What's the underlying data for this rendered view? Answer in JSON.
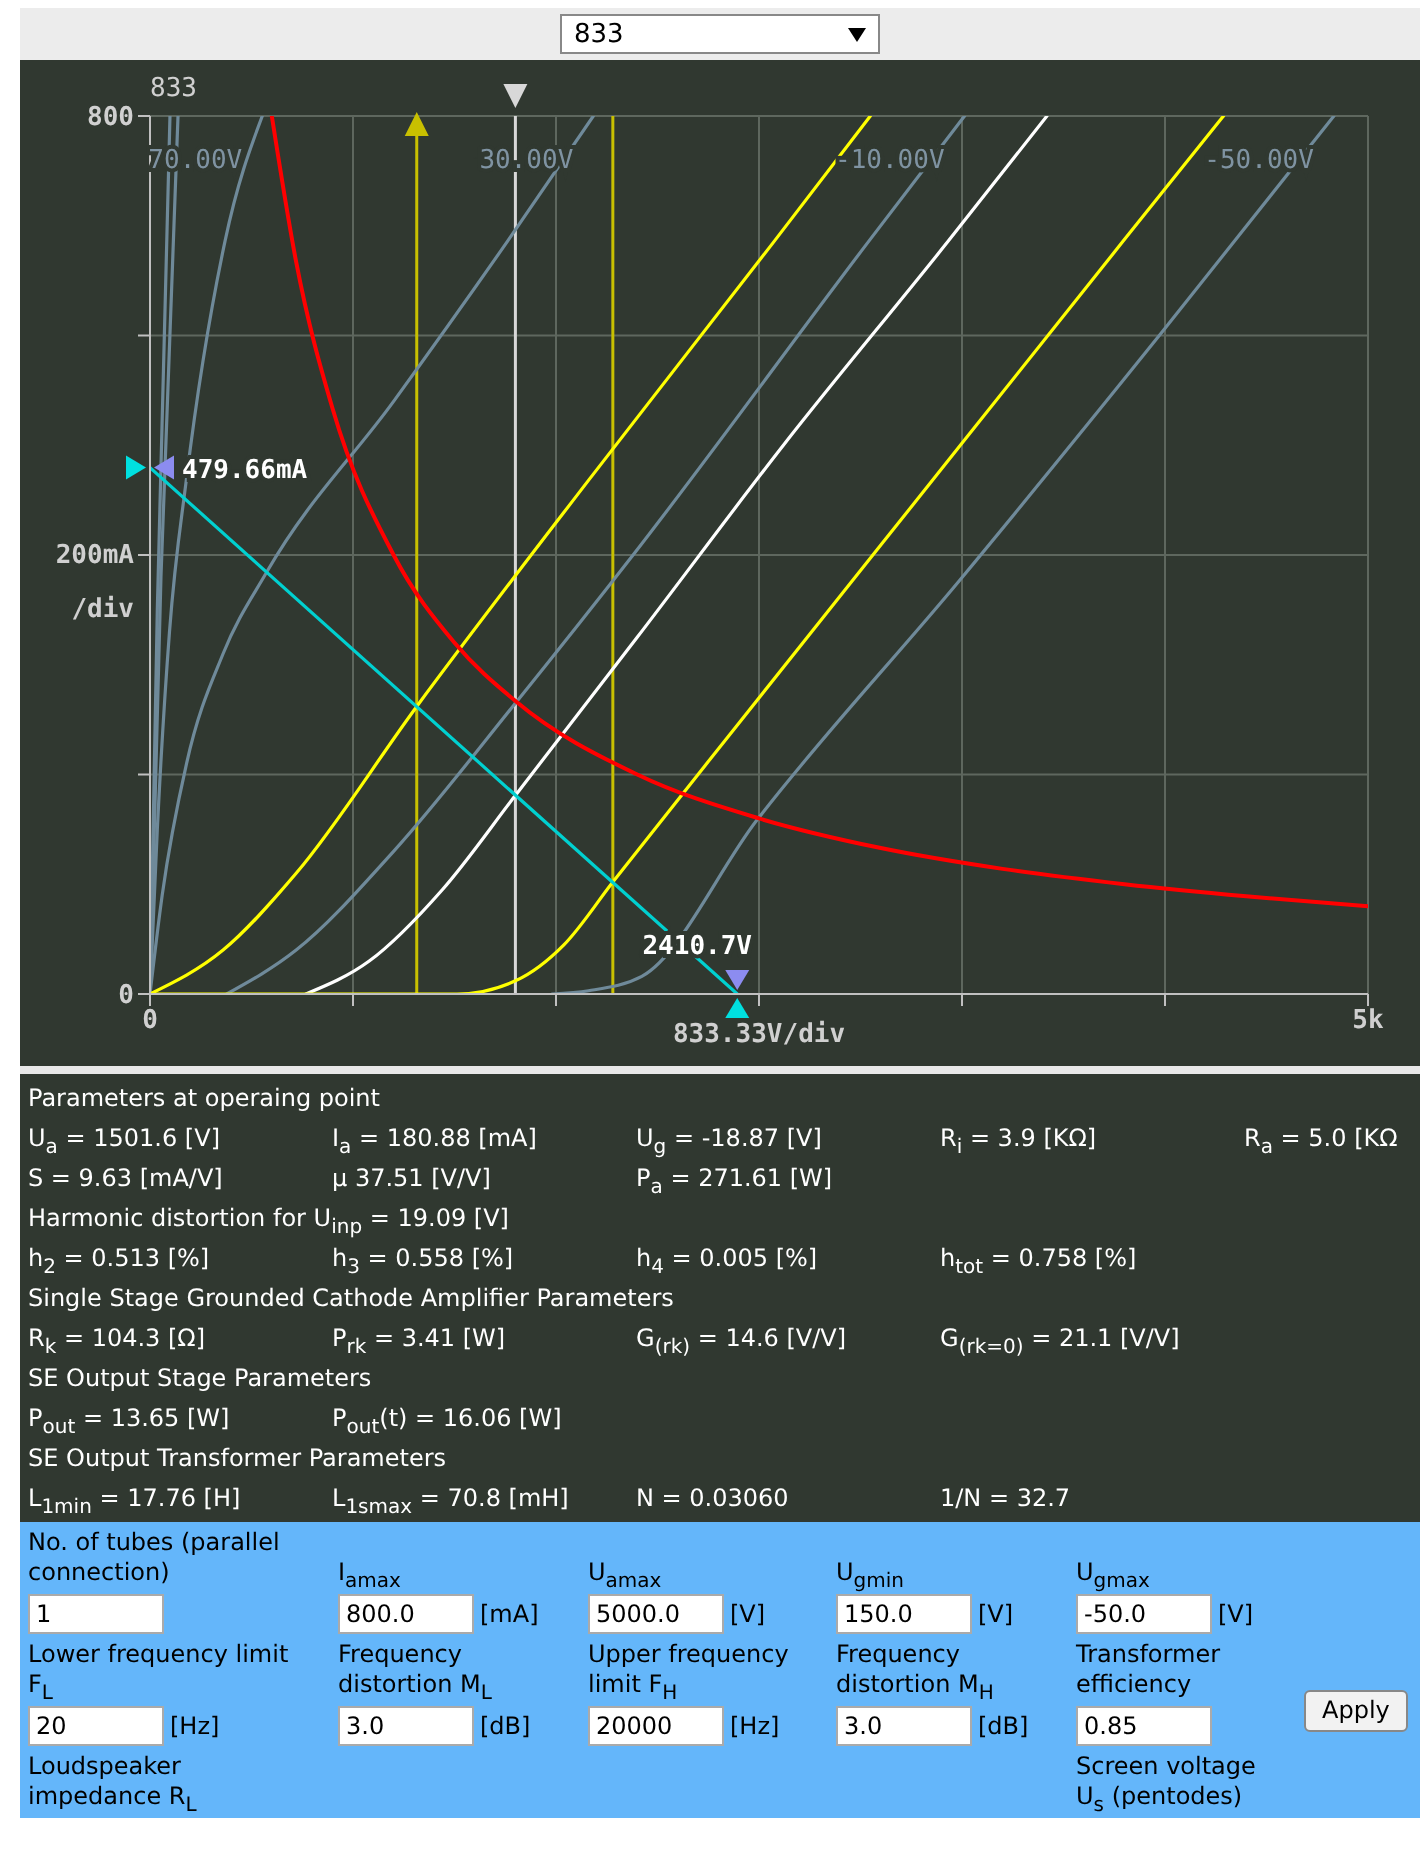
{
  "chart_data": {
    "type": "line",
    "title": "833",
    "xlabel": "833.33V/div",
    "ylabel": "200mA /div",
    "xlim": [
      0,
      5000
    ],
    "ylim": [
      0,
      800
    ],
    "xticks": [
      0,
      {
        "value": 833.33,
        "label": null
      },
      {
        "value": 1666.67,
        "label": null
      },
      {
        "value": 2500,
        "label": null
      },
      {
        "value": 3333.33,
        "label": null
      },
      {
        "value": 4166.67,
        "label": null
      },
      {
        "value": 5000,
        "label": "5k"
      }
    ],
    "yticks": [
      0,
      {
        "value": 200,
        "label": null
      },
      {
        "value": 400,
        "label": null
      },
      {
        "value": 600,
        "label": null
      },
      800
    ],
    "grid": true,
    "legend": false,
    "marker": "none",
    "line_style": "solid",
    "series": [
      {
        "color": "#6f8a9a",
        "x": [
          0,
          30,
          82
        ],
        "values": [
          0,
          350,
          800
        ]
      },
      {
        "color": "#6f8a9a",
        "x": [
          0,
          45,
          115
        ],
        "values": [
          0,
          380,
          800
        ]
      },
      {
        "name": "70.00V",
        "color": "#6f8a9a",
        "x": [
          0,
          30,
          80,
          150,
          308,
          461
        ],
        "values": [
          0,
          150,
          330,
          470,
          686,
          800
        ]
      },
      {
        "name": "30.00V",
        "color": "#6f8a9a",
        "x": [
          0,
          50,
          150,
          300,
          478,
          1000,
          1468,
          1820
        ],
        "values": [
          0,
          90,
          210,
          310,
          384,
          540,
          686,
          800
        ]
      },
      {
        "name": "-10.00V",
        "color": "#6f8a9a",
        "x": [
          315,
          600,
          1000,
          1500,
          1983,
          2951,
          3344
        ],
        "values": [
          0,
          40,
          130,
          265,
          400,
          686,
          800
        ]
      },
      {
        "name": "-50.00V",
        "color": "#6f8a9a",
        "x": [
          1650,
          1800,
          2019,
          2490,
          3324,
          4158,
          4860
        ],
        "values": [
          0,
          3,
          16,
          158,
          377,
          604,
          800
        ]
      },
      {
        "color": "#ffff00",
        "x": [
          0,
          300,
          600,
          1095,
          1800,
          2563,
          2957
        ],
        "values": [
          0,
          40,
          110,
          262,
          468,
          686,
          800
        ]
      },
      {
        "color": "#ffffff",
        "x": [
          640,
          900,
          1200,
          1500,
          2000,
          2600,
          3277,
          3682
        ],
        "values": [
          0,
          30,
          95,
          181,
          325,
          500,
          686,
          800
        ]
      },
      {
        "color": "#ffff00",
        "x": [
          0,
          1260,
          1500,
          1700,
          1900,
          2400,
          3000,
          3995,
          4407
        ],
        "values": [
          0,
          0,
          12,
          45,
          102,
          242,
          409,
          686,
          800
        ]
      },
      {
        "color": "#ff0000",
        "x": [
          500,
          600,
          750,
          1000,
          1250,
          1500,
          2000,
          2500,
          3000,
          3500,
          4000,
          4500,
          5000
        ],
        "values": [
          800,
          667,
          533,
          400,
          320,
          267,
          200,
          160,
          133,
          114,
          100,
          89,
          80
        ]
      },
      {
        "color": "#00d0d0",
        "x": [
          0,
          2410.7
        ],
        "values": [
          479.66,
          0
        ]
      }
    ],
    "ref_lines": [
      {
        "axis": "x",
        "value": 1095,
        "color": "#c8c000"
      },
      {
        "axis": "x",
        "value": 1500,
        "color": "#d8d8d8"
      },
      {
        "axis": "x",
        "value": 1900,
        "color": "#c8c000"
      }
    ],
    "annotations": [
      {
        "text": "479.66mA",
        "x": 0,
        "y": 479.66
      },
      {
        "text": "2410.7V",
        "x": 2410.7,
        "y": 0
      },
      "833",
      "Parameters at operaing point",
      "U$_{a}$ = 1501.6 [V]",
      "I$_{a}$ = 180.88 [mA]",
      "U$_{g}$ = -18.87 [V]",
      "R$_{i}$ = 3.9 [KΩ]",
      "R$_{a}$ = 5.0 [KΩ",
      "S = 9.63 [mA/V]",
      "μ 37.51 [V/V]",
      "P$_{a}$ = 271.61 [W]",
      "Harmonic distortion for U$_{inp}$ = 19.09 [V]",
      "h$_{2}$ = 0.513 [%]",
      "h$_{3}$ = 0.558 [%]",
      "h$_{4}$ = 0.005 [%]",
      "h$_{tot}$ = 0.758 [%]",
      "Single Stage Grounded Cathode Amplifier Parameters",
      "R$_{k}$ = 104.3 [Ω]",
      "P$_{rk}$ = 3.41 [W]",
      "G$_{(rk)}$ = 14.6 [V/V]",
      "G$_{(rk=0)}$ = 21.1 [V/V]",
      "SE Output Stage Parameters",
      "P$_{out}$ = 13.65 [W]",
      "P$_{out}$(t) = 16.06 [W]",
      "SE Output Transformer Parameters",
      "L$_{1min}$ = 17.76 [H]",
      "L$_{1smax}$ = 70.8 [mH]",
      "N = 0.03060",
      "1/N = 32.7",
      "No. of tubes (parallel connection)",
      "I$_{amax}$",
      "U$_{amax}$",
      "U$_{gmin}$",
      "U$_{gmax}$",
      "1",
      "800.0",
      "[mA]",
      "5000.0",
      "[V]",
      "150.0",
      "[V]",
      "-50.0",
      "[V]",
      "Lower frequency limit F$_{L}$",
      "Frequency distortion M$_{L}$",
      "Upper frequency limit F$_{H}$",
      "Frequency distortion M$_{H}$",
      "Transformer efficiency",
      "20",
      "[Hz]",
      "3.0",
      "[dB]",
      "20000",
      "[Hz]",
      "3.0",
      "[dB]",
      "0.85",
      "Apply",
      "Loudspeaker impedance R$_{L}$",
      "Screen voltage U$_{s}$ (pentodes)"
    ]
  }
}
